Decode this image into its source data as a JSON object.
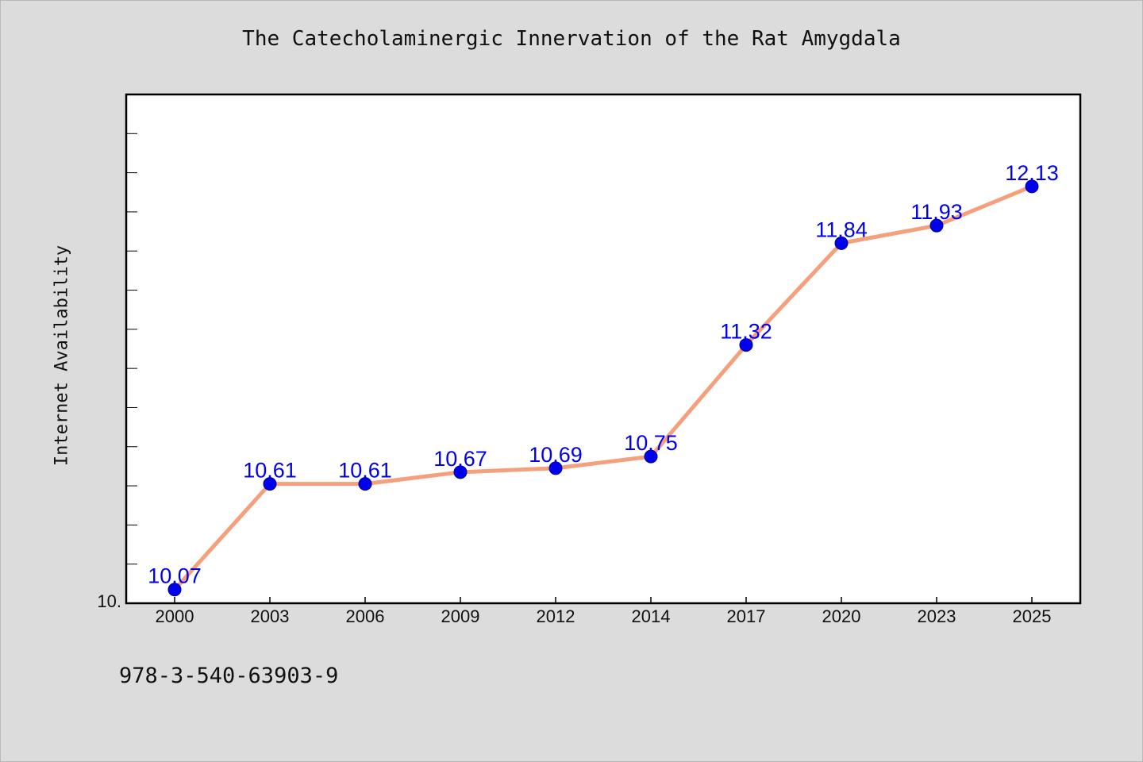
{
  "chart_data": {
    "type": "line",
    "title": "The Catecholaminergic Innervation of the Rat Amygdala",
    "xlabel": "",
    "ylabel": "Internet Availability",
    "categories": [
      "2000",
      "2003",
      "2006",
      "2009",
      "2012",
      "2014",
      "2017",
      "2020",
      "2023",
      "2025"
    ],
    "series": [
      {
        "values": [
          10.07,
          10.61,
          10.61,
          10.67,
          10.69,
          10.75,
          11.32,
          11.84,
          11.93,
          12.13
        ],
        "data_labels": [
          "10.07",
          "10.61",
          "10.61",
          "10.67",
          "10.69",
          "10.75",
          "11.32",
          "11.84",
          "11.93",
          "12.13"
        ],
        "line_color": "#f4a07c",
        "marker_color": "#0000ee"
      }
    ],
    "ylim": [
      10.0,
      12.6
    ],
    "y_tick_labels": [
      {
        "value": 10.0,
        "label": "10."
      }
    ],
    "grid": false,
    "legend": "none"
  },
  "footnote": "978-3-540-63903-9",
  "colors": {
    "background": "#dcdcdc",
    "plot_area": "#ffffff",
    "axis": "#000000",
    "line": "#f4a07c",
    "marker": "#0000ee",
    "data_label": "#0000ee"
  }
}
